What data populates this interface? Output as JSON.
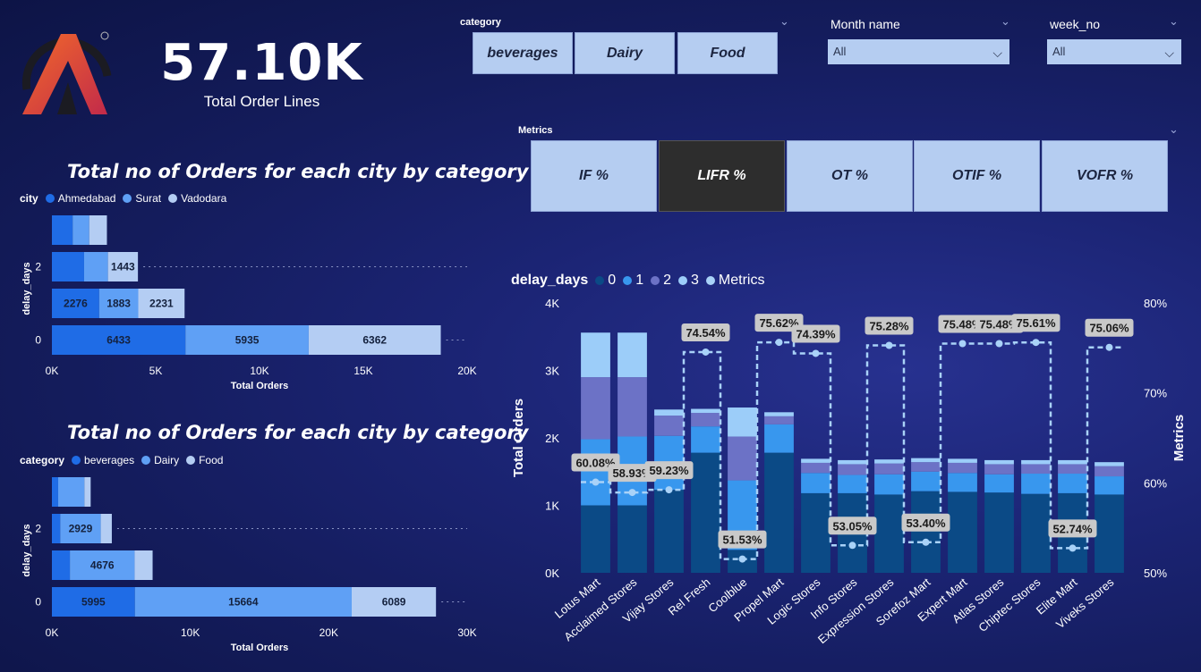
{
  "kpi": {
    "value": "57.10K",
    "label": "Total Order Lines"
  },
  "slicers": {
    "category": {
      "title": "category",
      "options": [
        "beverages",
        "Dairy",
        "Food"
      ]
    },
    "month": {
      "title": "Month name",
      "value": "All"
    },
    "week": {
      "title": "week_no",
      "value": "All"
    },
    "metrics": {
      "title": "Metrics",
      "options": [
        "IF %",
        "LIFR %",
        "OT %",
        "OTIF %",
        "VOFR %"
      ],
      "selected": "LIFR %"
    }
  },
  "colors": {
    "c0": "#1f6ce6",
    "c1": "#5fa0f5",
    "c2": "#b4cdf3",
    "d0": "#0b4a86",
    "d1": "#3897ee",
    "d2": "#6c72c6",
    "d3": "#9ccdf9"
  },
  "chart1": {
    "title": "Total no of Orders for each city by category",
    "legend_title": "city",
    "legend": [
      "Ahmedabad",
      "Surat",
      "Vadodara"
    ],
    "ylabel": "delay_days",
    "xlabel": "Total Orders"
  },
  "chart2": {
    "title": "Total no of Orders for each city by category",
    "legend_title": "category",
    "legend": [
      "beverages",
      "Dairy",
      "Food"
    ],
    "ylabel": "delay_days",
    "xlabel": "Total Orders"
  },
  "chart3": {
    "legend_title": "delay_days",
    "legend": [
      "0",
      "1",
      "2",
      "3",
      "Metrics"
    ],
    "ylabel": "Total Orders",
    "y2label": "Metrics"
  },
  "chart_data": [
    {
      "type": "bar",
      "orientation": "horizontal",
      "stacked": true,
      "title": "Total no of Orders for each city by category",
      "categories": [
        "3",
        "2",
        "1",
        "0"
      ],
      "ytick_labels": [
        "",
        "2",
        "",
        "0"
      ],
      "series": [
        {
          "name": "Ahmedabad",
          "values": [
            1000,
            1550,
            2276,
            6433
          ]
        },
        {
          "name": "Surat",
          "values": [
            800,
            1150,
            1883,
            5935
          ]
        },
        {
          "name": "Vadodara",
          "values": [
            850,
            1443,
            2231,
            6362
          ]
        }
      ],
      "data_labels": [
        [
          "",
          "",
          "",
          ""
        ],
        [
          "",
          "",
          "1443",
          ""
        ],
        [
          "2276",
          "1883",
          "2231",
          ""
        ],
        [
          "6433",
          "5935",
          "6362",
          ""
        ]
      ],
      "xlabel": "Total Orders",
      "ylabel": "delay_days",
      "xlim": [
        0,
        20000
      ],
      "xticks": [
        0,
        5000,
        10000,
        15000,
        20000
      ],
      "xtick_labels": [
        "0K",
        "5K",
        "10K",
        "15K",
        "20K"
      ],
      "legend_position": "top-left"
    },
    {
      "type": "bar",
      "orientation": "horizontal",
      "stacked": true,
      "title": "Total no of Orders for each city by category",
      "categories": [
        "3",
        "2",
        "1",
        "0"
      ],
      "ytick_labels": [
        "",
        "2",
        "",
        "0"
      ],
      "series": [
        {
          "name": "beverages",
          "values": [
            450,
            600,
            1300,
            5995
          ]
        },
        {
          "name": "Dairy",
          "values": [
            1900,
            2929,
            4676,
            15664
          ]
        },
        {
          "name": "Food",
          "values": [
            450,
            800,
            1300,
            6089
          ]
        }
      ],
      "data_labels": [
        [
          "",
          "",
          "",
          ""
        ],
        [
          "",
          "2929",
          "",
          ""
        ],
        [
          "",
          "4676",
          "",
          ""
        ],
        [
          "5995",
          "15664",
          "6089",
          ""
        ]
      ],
      "xlabel": "Total Orders",
      "ylabel": "delay_days",
      "xlim": [
        0,
        30000
      ],
      "xticks": [
        0,
        10000,
        20000,
        30000
      ],
      "xtick_labels": [
        "0K",
        "10K",
        "20K",
        "30K"
      ],
      "legend_position": "top-left"
    },
    {
      "type": "bar",
      "stacked": true,
      "with_line": true,
      "categories": [
        "Lotus Mart",
        "Acclaimed Stores",
        "Vijay Stores",
        "Rel Fresh",
        "Coolblue",
        "Propel Mart",
        "Logic Stores",
        "Info Stores",
        "Expression Stores",
        "Sorefoz Mart",
        "Expert Mart",
        "Atlas Stores",
        "Chiptec Stores",
        "Elite Mart",
        "Viveks Stores"
      ],
      "series": [
        {
          "name": "0",
          "values": [
            1000,
            1000,
            1230,
            1780,
            340,
            1780,
            1180,
            1180,
            1160,
            1210,
            1200,
            1190,
            1170,
            1180,
            1160
          ]
        },
        {
          "name": "1",
          "values": [
            980,
            1020,
            800,
            390,
            1030,
            420,
            300,
            270,
            300,
            290,
            280,
            270,
            300,
            290,
            270
          ]
        },
        {
          "name": "2",
          "values": [
            920,
            880,
            300,
            200,
            650,
            120,
            150,
            160,
            160,
            140,
            150,
            150,
            140,
            140,
            150
          ]
        },
        {
          "name": "3",
          "values": [
            660,
            660,
            90,
            60,
            430,
            60,
            60,
            60,
            60,
            60,
            60,
            60,
            60,
            60,
            60
          ]
        }
      ],
      "line": {
        "name": "Metrics",
        "values": [
          60.08,
          58.93,
          59.23,
          74.54,
          51.53,
          75.62,
          74.39,
          53.05,
          75.28,
          53.4,
          75.48,
          75.48,
          75.61,
          52.74,
          75.06
        ],
        "labels": [
          "60.08%",
          "58.93%",
          "59.23%",
          "74.54%",
          "51.53%",
          "75.62%",
          "74.39%",
          "53.05%",
          "75.28%",
          "53.40%",
          "75.48%",
          "75.48%",
          "75.61%",
          "52.74%",
          "75.06%"
        ]
      },
      "ylabel": "Total Orders",
      "y2label": "Metrics",
      "ylim": [
        0,
        4000
      ],
      "yticks": [
        0,
        1000,
        2000,
        3000,
        4000
      ],
      "ytick_labels": [
        "0K",
        "1K",
        "2K",
        "3K",
        "4K"
      ],
      "y2lim": [
        50,
        80
      ],
      "y2ticks": [
        50,
        60,
        70,
        80
      ],
      "y2tick_labels": [
        "50%",
        "60%",
        "70%",
        "80%"
      ],
      "legend_position": "top-left"
    }
  ]
}
